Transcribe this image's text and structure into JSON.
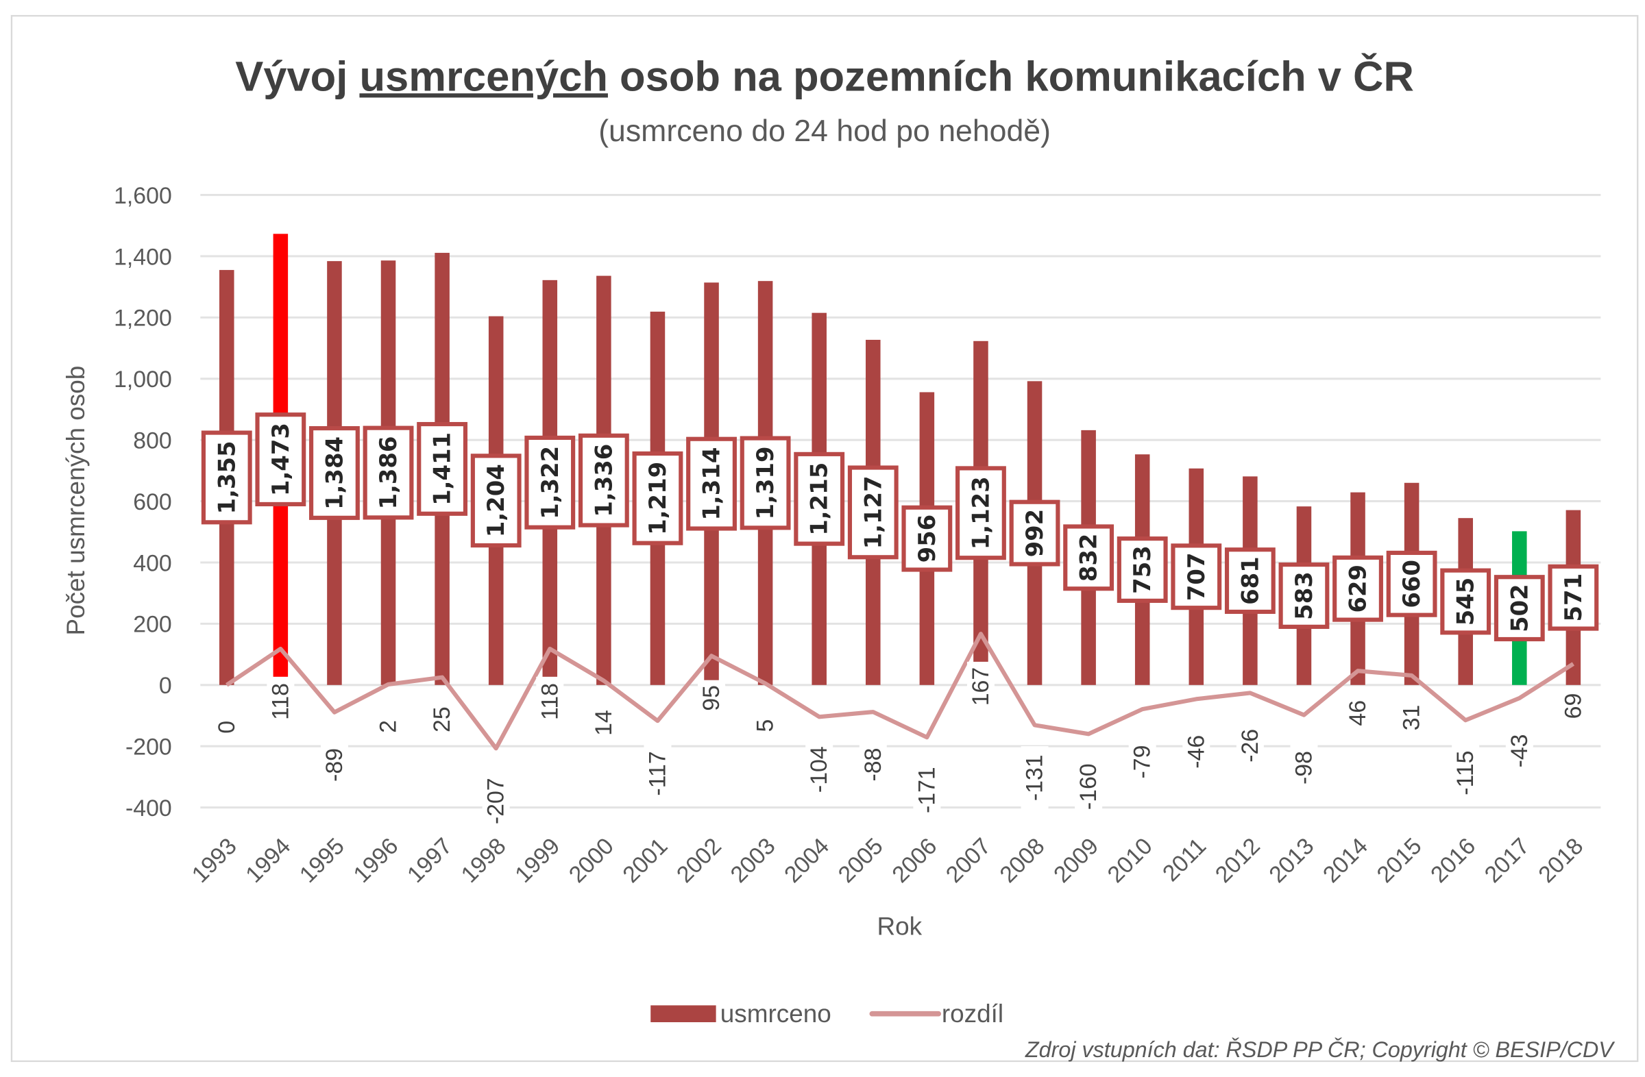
{
  "chart_data": {
    "type": "bar",
    "title_parts": [
      "Vývoj ",
      "usmrcených",
      " osob na pozemních komunikacích v ČR"
    ],
    "subtitle": "(usmrceno do 24 hod po nehodě)",
    "xlabel": "Rok",
    "ylabel": "Počet usmrcených osob",
    "ylim": [
      -400,
      1600
    ],
    "yticks": [
      -400,
      -200,
      0,
      200,
      400,
      600,
      800,
      1000,
      1200,
      1400,
      1600
    ],
    "ytick_labels": [
      "-400",
      "-200",
      "0",
      "200",
      "400",
      "600",
      "800",
      "1,000",
      "1,200",
      "1,400",
      "1,600"
    ],
    "grid": true,
    "legend_position": "bottom",
    "categories": [
      "1993",
      "1994",
      "1995",
      "1996",
      "1997",
      "1998",
      "1999",
      "2000",
      "2001",
      "2002",
      "2003",
      "2004",
      "2005",
      "2006",
      "2007",
      "2008",
      "2009",
      "2010",
      "2011",
      "2012",
      "2013",
      "2014",
      "2015",
      "2016",
      "2017",
      "2018"
    ],
    "series": [
      {
        "name": "usmrceno",
        "type": "bar",
        "color": "#ab4442",
        "highlight_colors": {
          "1994": "#ff0000",
          "2017": "#00b050"
        },
        "values": [
          1355,
          1473,
          1384,
          1386,
          1411,
          1204,
          1322,
          1336,
          1219,
          1314,
          1319,
          1215,
          1127,
          956,
          1123,
          992,
          832,
          753,
          707,
          681,
          583,
          629,
          660,
          545,
          502,
          571
        ],
        "labels": [
          "1,355",
          "1,473",
          "1,384",
          "1,386",
          "1,411",
          "1,204",
          "1,322",
          "1,336",
          "1,219",
          "1,314",
          "1,319",
          "1,215",
          "1,127",
          "956",
          "1,123",
          "992",
          "832",
          "753",
          "707",
          "681",
          "583",
          "629",
          "660",
          "545",
          "502",
          "571"
        ]
      },
      {
        "name": "rozdíl",
        "type": "line",
        "color": "#d49595",
        "values": [
          0,
          118,
          -89,
          2,
          25,
          -207,
          118,
          14,
          -117,
          95,
          5,
          -104,
          -88,
          -171,
          167,
          -131,
          -160,
          -79,
          -46,
          -26,
          -98,
          46,
          31,
          -115,
          -43,
          69
        ]
      }
    ],
    "source": "Zdroj vstupních dat: ŘSDP PP ČR; Copyright © BESIP/CDV"
  }
}
